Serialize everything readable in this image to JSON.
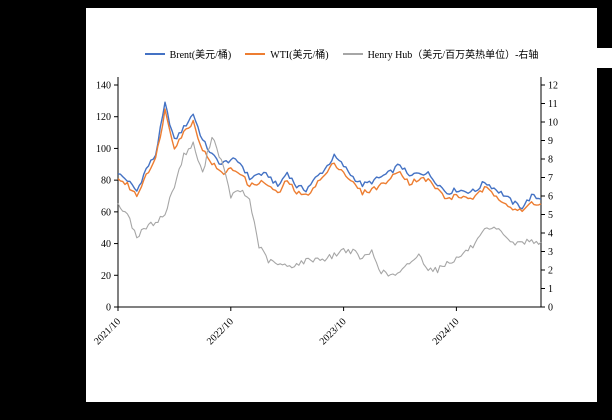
{
  "page": {
    "background_color": "#000000",
    "panel_color": "#ffffff"
  },
  "chart_data": {
    "type": "line",
    "title": "",
    "xlabel": "",
    "ylabel_left": "",
    "ylabel_right": "",
    "grid": false,
    "legend_position": "top-center",
    "x_tick_labels": [
      "2021/10",
      "2022/10",
      "2023/10",
      "2024/10"
    ],
    "x_tick_month_indices": [
      0,
      12,
      24,
      36
    ],
    "months_span": 45,
    "x_start_label": "2021/10",
    "left_axis": {
      "min": 0,
      "max": 140,
      "step": 20
    },
    "right_axis": {
      "min": 0,
      "max": 12,
      "step": 1
    },
    "series": [
      {
        "name": "Brent(美元/桶)",
        "axis": "left",
        "color": "#4472C4",
        "values": [
          84,
          80,
          73,
          87,
          96,
          128,
          105,
          113,
          122,
          105,
          96,
          90,
          93,
          91,
          81,
          84,
          83,
          76,
          85,
          76,
          74,
          81,
          87,
          95,
          89,
          82,
          77,
          79,
          82,
          85,
          90,
          82,
          85,
          84,
          78,
          72,
          74,
          73,
          73,
          79,
          75,
          71,
          66,
          63,
          70,
          68
        ]
      },
      {
        "name": "WTI(美元/桶)",
        "axis": "left",
        "color": "#ED7D31",
        "values": [
          81,
          77,
          70,
          84,
          93,
          124,
          101,
          110,
          117,
          99,
          91,
          84,
          87,
          85,
          76,
          79,
          77,
          71,
          80,
          72,
          70,
          77,
          83,
          91,
          85,
          78,
          72,
          74,
          77,
          81,
          86,
          78,
          81,
          80,
          74,
          68,
          70,
          69,
          69,
          75,
          71,
          67,
          62,
          60,
          66,
          65
        ]
      },
      {
        "name": "Henry Hub（美元/百万英热单位）-右轴",
        "axis": "right",
        "color": "#A6A6A6",
        "values": [
          5.6,
          5.0,
          3.8,
          4.3,
          4.6,
          5.0,
          6.6,
          8.2,
          8.8,
          7.2,
          9.3,
          7.9,
          6.0,
          6.3,
          5.8,
          3.3,
          2.5,
          2.3,
          2.2,
          2.3,
          2.5,
          2.6,
          2.6,
          2.8,
          3.1,
          3.0,
          2.6,
          3.0,
          1.9,
          1.7,
          1.8,
          2.4,
          2.8,
          2.1,
          2.0,
          2.4,
          2.6,
          3.0,
          3.4,
          4.1,
          4.2,
          4.0,
          3.4,
          3.5,
          3.6,
          3.5
        ]
      }
    ]
  }
}
